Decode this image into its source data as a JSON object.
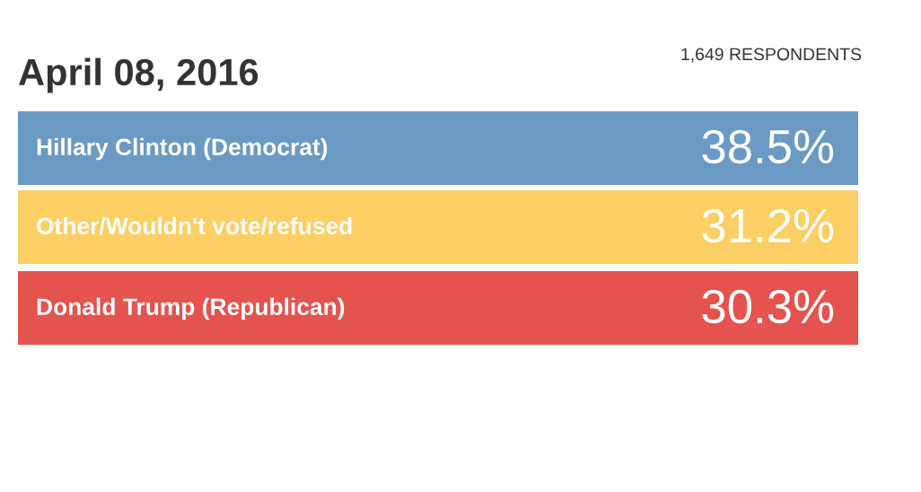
{
  "chart_data": {
    "type": "other",
    "title": "April 08, 2016",
    "subtitle": "1,649 RESPONDENTS",
    "categories": [
      "Hillary Clinton (Democrat)",
      "Other/Wouldn't vote/refused",
      "Donald Trump (Republican)"
    ],
    "values": [
      38.5,
      31.2,
      30.3
    ],
    "value_labels": [
      "38.5%",
      "31.2%",
      "30.3%"
    ],
    "colors": [
      "#6a9ac4",
      "#fbcf63",
      "#e5534f"
    ]
  }
}
